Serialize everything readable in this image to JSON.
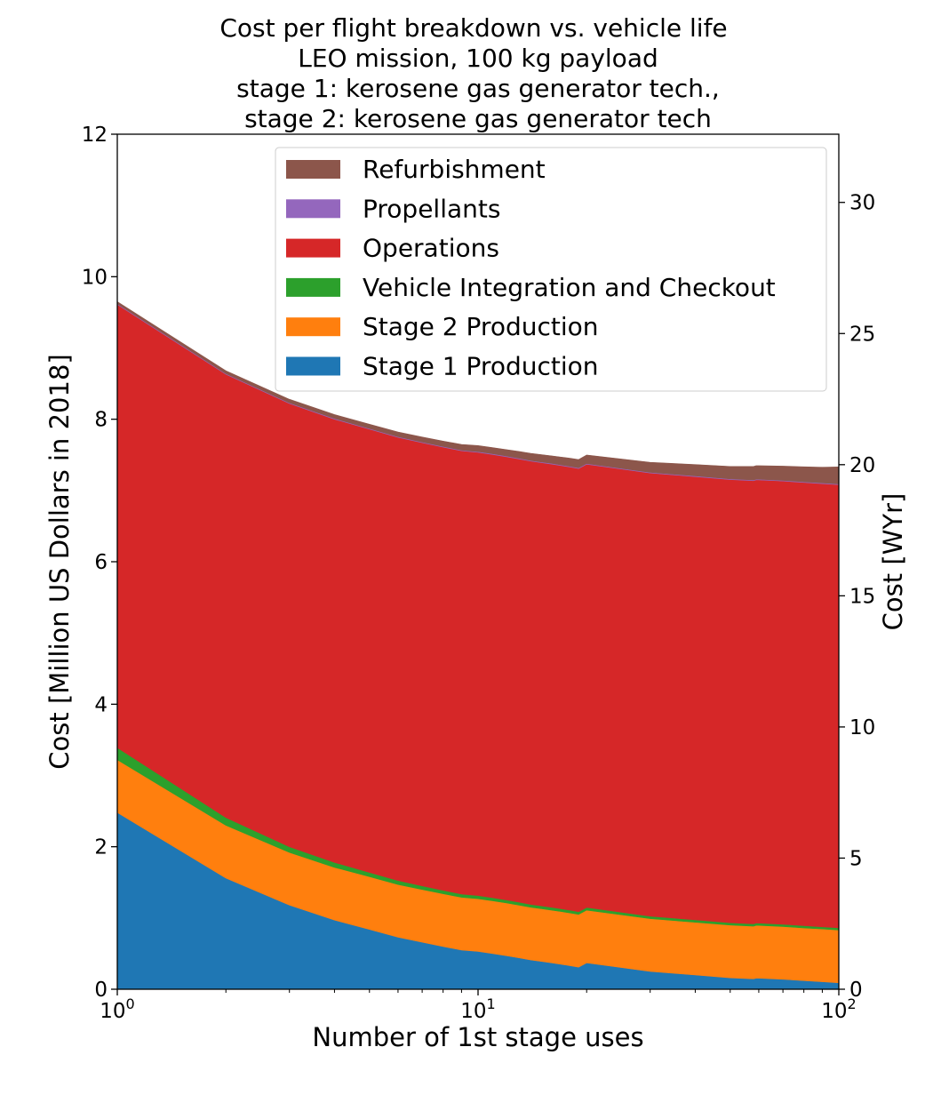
{
  "chart_data": {
    "type": "area",
    "stacked": true,
    "title_lines": [
      "Cost per flight breakdown vs. vehicle life",
      "LEO mission, 100 kg payload",
      "stage 1: kerosene gas generator tech.,",
      "stage 2: kerosene gas generator tech"
    ],
    "xlabel": "Number of 1st stage uses",
    "ylabel": "Cost [Million US Dollars in 2018]",
    "ylabel_right": "Cost [WYr]",
    "x_scale": "log",
    "xlim": [
      1,
      100
    ],
    "ylim": [
      0,
      12
    ],
    "ylim_right": [
      0,
      32.6
    ],
    "x_ticks": [
      {
        "value": 1,
        "base": "10",
        "exp": "0"
      },
      {
        "value": 10,
        "base": "10",
        "exp": "1"
      },
      {
        "value": 100,
        "base": "10",
        "exp": "2"
      }
    ],
    "y_ticks": [
      0,
      2,
      4,
      6,
      8,
      10,
      12
    ],
    "y_ticks_right": [
      0,
      5,
      10,
      15,
      20,
      25,
      30
    ],
    "grid": false,
    "legend_position": "upper center",
    "x": [
      1,
      2,
      3,
      4,
      5,
      6,
      7,
      8,
      9,
      10,
      11,
      12,
      13,
      14,
      15,
      16,
      17,
      18,
      19,
      20,
      30,
      40,
      50,
      58,
      59,
      60,
      70,
      80,
      90,
      100
    ],
    "series": [
      {
        "name": "Stage 1 Production",
        "color": "#1f77b4",
        "values": [
          2.48,
          1.56,
          1.18,
          0.97,
          0.84,
          0.73,
          0.66,
          0.6,
          0.55,
          0.53,
          0.5,
          0.47,
          0.44,
          0.41,
          0.39,
          0.37,
          0.35,
          0.33,
          0.31,
          0.37,
          0.25,
          0.2,
          0.16,
          0.145,
          0.155,
          0.155,
          0.14,
          0.12,
          0.105,
          0.09
        ]
      },
      {
        "name": "Stage 2 Production",
        "color": "#ff7f0e",
        "values": [
          0.74,
          0.74,
          0.74,
          0.74,
          0.74,
          0.74,
          0.74,
          0.74,
          0.74,
          0.74,
          0.74,
          0.74,
          0.74,
          0.74,
          0.74,
          0.74,
          0.74,
          0.74,
          0.74,
          0.74,
          0.74,
          0.74,
          0.74,
          0.74,
          0.74,
          0.74,
          0.74,
          0.74,
          0.74,
          0.74
        ]
      },
      {
        "name": "Vehicle Integration and Checkout",
        "color": "#2ca02c",
        "values": [
          0.17,
          0.11,
          0.08,
          0.07,
          0.06,
          0.055,
          0.05,
          0.048,
          0.046,
          0.045,
          0.044,
          0.043,
          0.042,
          0.041,
          0.04,
          0.04,
          0.039,
          0.039,
          0.038,
          0.038,
          0.035,
          0.034,
          0.033,
          0.033,
          0.033,
          0.033,
          0.032,
          0.032,
          0.031,
          0.031
        ]
      },
      {
        "name": "Operations",
        "color": "#d62728",
        "values": [
          6.22,
          6.22,
          6.22,
          6.22,
          6.22,
          6.22,
          6.22,
          6.22,
          6.22,
          6.22,
          6.22,
          6.22,
          6.22,
          6.22,
          6.22,
          6.22,
          6.22,
          6.22,
          6.22,
          6.22,
          6.22,
          6.22,
          6.22,
          6.22,
          6.22,
          6.22,
          6.22,
          6.22,
          6.22,
          6.22
        ]
      },
      {
        "name": "Propellants",
        "color": "#9467bd",
        "values": [
          0.01,
          0.01,
          0.01,
          0.01,
          0.01,
          0.01,
          0.01,
          0.01,
          0.01,
          0.01,
          0.01,
          0.01,
          0.01,
          0.01,
          0.01,
          0.01,
          0.01,
          0.01,
          0.01,
          0.01,
          0.01,
          0.01,
          0.01,
          0.01,
          0.01,
          0.01,
          0.01,
          0.01,
          0.01,
          0.01
        ]
      },
      {
        "name": "Refurbishment",
        "color": "#8c564b",
        "values": [
          0.03,
          0.04,
          0.05,
          0.055,
          0.06,
          0.065,
          0.07,
          0.075,
          0.08,
          0.085,
          0.087,
          0.09,
          0.095,
          0.1,
          0.103,
          0.106,
          0.11,
          0.113,
          0.116,
          0.12,
          0.14,
          0.16,
          0.175,
          0.19,
          0.19,
          0.19,
          0.2,
          0.21,
          0.22,
          0.24
        ]
      }
    ]
  }
}
